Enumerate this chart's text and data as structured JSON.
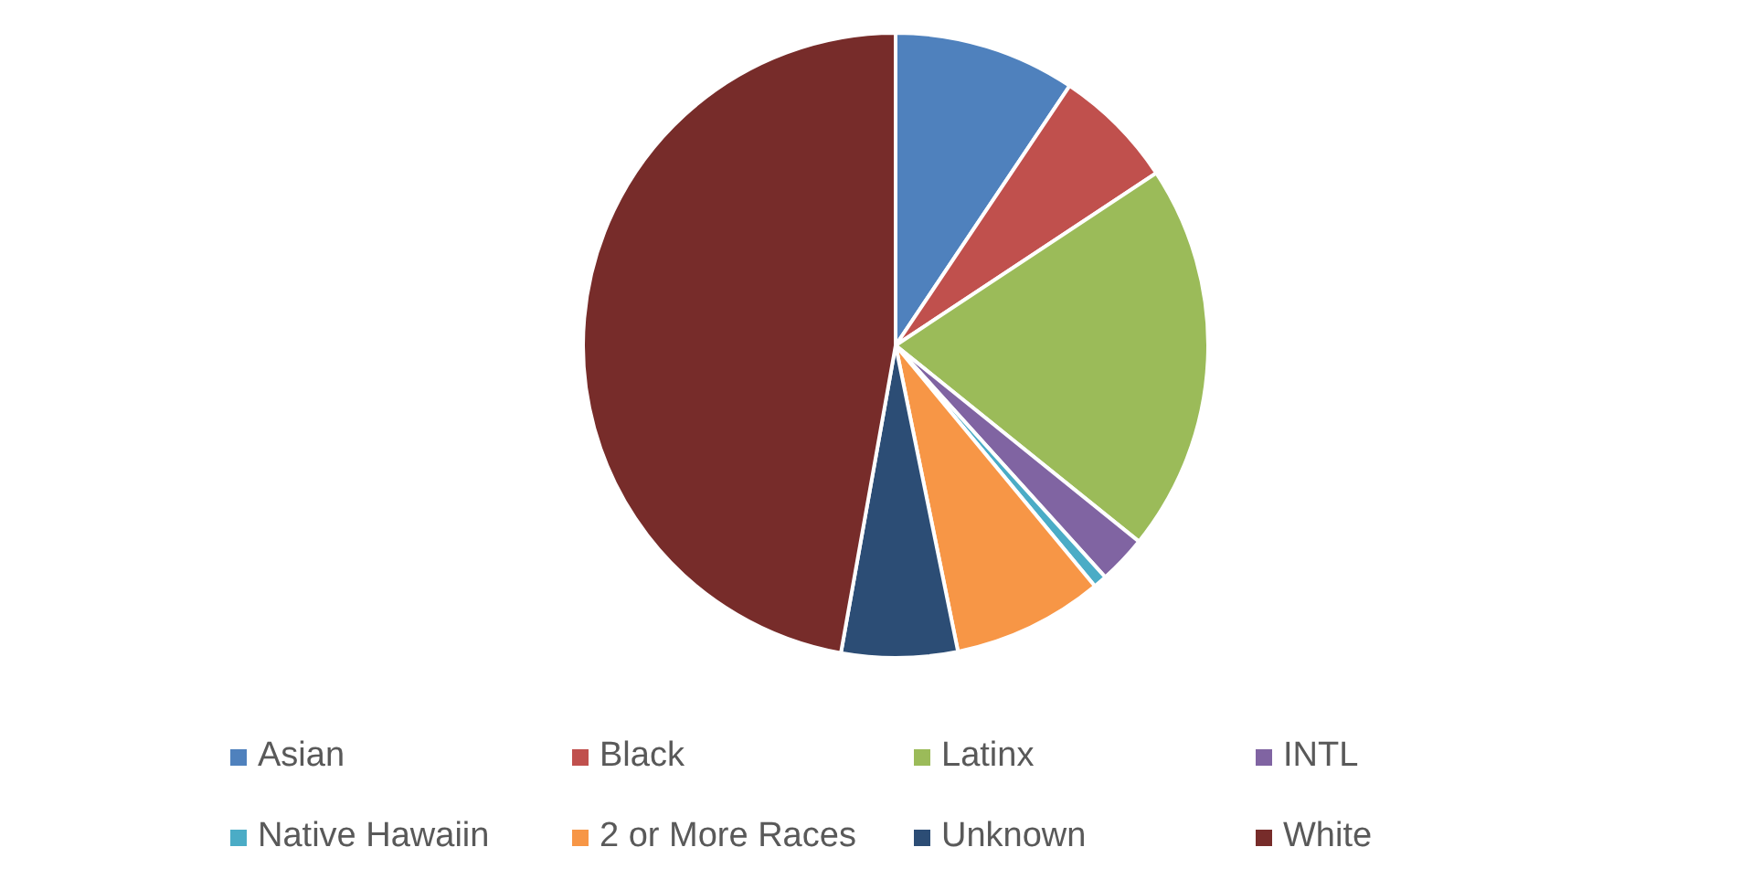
{
  "chart_data": {
    "type": "pie",
    "categories": [
      "Asian",
      "Black",
      "Latinx",
      "INTL",
      "Native Hawaiin",
      "2 or More Races",
      "Unknown",
      "White"
    ],
    "values": [
      9.4,
      6.3,
      20.1,
      2.5,
      0.7,
      7.8,
      6,
      47.2
    ],
    "colors": [
      "#4f81bd",
      "#c0504d",
      "#9bbb59",
      "#8064a2",
      "#4bacc6",
      "#f79646",
      "#2c4d75",
      "#772c2a"
    ],
    "legend": "bottom"
  }
}
